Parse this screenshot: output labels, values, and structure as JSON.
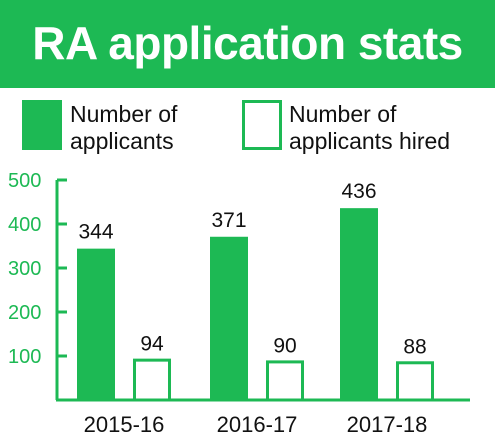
{
  "title": "RA application stats",
  "legend": [
    {
      "line1": "Number of",
      "line2": "applicants",
      "style": "filled"
    },
    {
      "line1": "Number of",
      "line2": "applicants hired",
      "style": "outline"
    }
  ],
  "colors": {
    "accent": "#1db954",
    "text": "#111111",
    "background": "#ffffff"
  },
  "chart_data": {
    "type": "bar",
    "categories": [
      "2015-16",
      "2016-17",
      "2017-18"
    ],
    "series": [
      {
        "name": "Number of applicants",
        "values": [
          344,
          371,
          436
        ]
      },
      {
        "name": "Number of applicants hired",
        "values": [
          94,
          90,
          88
        ]
      }
    ],
    "ylim": [
      0,
      500
    ],
    "yticks": [
      100,
      200,
      300,
      400,
      500
    ],
    "grid": false,
    "legend_position": "top"
  }
}
